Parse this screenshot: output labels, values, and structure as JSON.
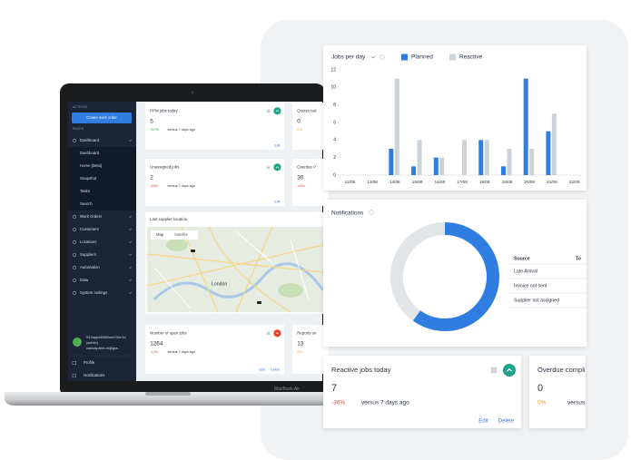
{
  "laptop": {
    "model": "MacBook Air",
    "sidebar": {
      "actions_heading": "ACTIONS",
      "button": "Create work order",
      "pages_heading": "PAGES",
      "items": [
        "Dashboard",
        "Work Orders",
        "Customers",
        "Locations",
        "Suppliers",
        "Automation",
        "Data",
        "System settings"
      ],
      "subitems": [
        "Dashboard",
        "Home (Beta)",
        "Snapshot",
        "Tasks",
        "Search"
      ],
      "user": {
        "name": "S13upjx0f2t5l0mcV3rh/1d",
        "role": "(admin)",
        "email": "cassidy.abm.m@gra..."
      },
      "footer_items": [
        "Profile",
        "Notifications"
      ]
    },
    "cards": [
      {
        "title": "PPM jobs today",
        "value": "5",
        "change": "+67%",
        "comparison": "versus 7 days ago",
        "actions": [
          "Edit"
        ]
      },
      {
        "title": "Quotes tod",
        "value": "0",
        "change": "0%"
      },
      {
        "title": "Unassigned jobs",
        "value": "2",
        "change": "-50%",
        "comparison": "versus 7 days ago",
        "actions": [
          "Edit"
        ]
      },
      {
        "title": "Overdue P",
        "value": "30",
        "change": "-62%"
      },
      {
        "title": "Number of open jobs",
        "value": "1264",
        "change": "-12%",
        "comparison": "versus 7 days ago",
        "actions": [
          "Edit",
          "Delete"
        ]
      },
      {
        "title": "Reports un",
        "value": "13",
        "change": "0%"
      }
    ],
    "map": {
      "title": "Last supplier location",
      "tabs": [
        "Map",
        "Satellite"
      ],
      "place": "London"
    }
  },
  "chart_data": [
    {
      "type": "bar",
      "title": "Jobs per day",
      "categories": [
        "12/08",
        "13/08",
        "14/08",
        "15/08",
        "16/08",
        "17/08",
        "18/08",
        "19/08",
        "20/08",
        "21/08",
        "22/08"
      ],
      "series": [
        {
          "name": "Planned",
          "color": "#2f7de1",
          "values": [
            0,
            0,
            3,
            1,
            2,
            0,
            4,
            1,
            11,
            5,
            0
          ]
        },
        {
          "name": "Reactive",
          "color": "#cbd3da",
          "values": [
            0,
            0,
            11,
            4,
            2,
            4,
            4,
            3,
            3,
            7,
            0
          ]
        }
      ],
      "ylim": [
        0,
        12
      ],
      "yticks": [
        0,
        2,
        4,
        6,
        8,
        10,
        12
      ],
      "grid": false
    },
    {
      "type": "donut",
      "title": "Notifications",
      "values": [
        60,
        40
      ],
      "colors": [
        "#2f7de1",
        "#e1e5e8"
      ]
    }
  ],
  "notifications_table": {
    "header": [
      "Source",
      "To"
    ],
    "rows": [
      "Late Arrival",
      "Invoice not sent",
      "Supplier not assigned"
    ]
  },
  "cards": [
    {
      "title": "Reactive jobs today",
      "value": "7",
      "change": "-36%",
      "comparison": "versus 7 days ago",
      "actions": [
        "Edit",
        "Delete"
      ]
    },
    {
      "title": "Overdue compli",
      "value": "0",
      "change": "0%",
      "comparison": "versus 7"
    }
  ]
}
